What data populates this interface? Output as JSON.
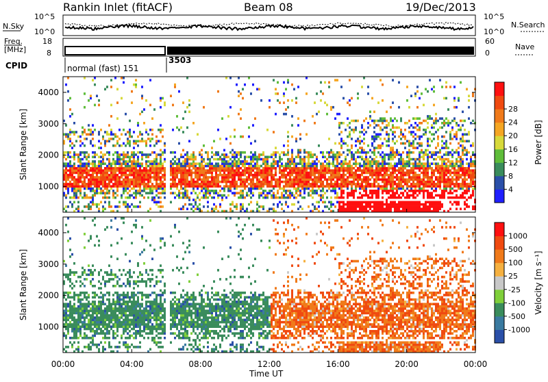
{
  "header": {
    "title": "Rankin Inlet (fitACF)",
    "beam": "Beam 08",
    "date": "19/Dec/2013"
  },
  "noise_panel": {
    "left_label": "N.Sky",
    "right_label": "N.Search",
    "left_ticks": [
      "10^5",
      "10^0"
    ],
    "right_ticks": [
      "10^5",
      "10^0"
    ]
  },
  "freq_panel": {
    "left_label_top": "Freq.",
    "left_label_bottom": "[MHz]",
    "right_label": "Nave",
    "left_ticks": [
      "18",
      "8"
    ],
    "right_ticks": [
      "60",
      "0"
    ]
  },
  "cpid_panel": {
    "label": "CPID",
    "modes": [
      {
        "name": "normal (fast) 151",
        "start_hour": 0,
        "end_hour": 6
      },
      {
        "name": "3503",
        "start_hour": 6,
        "end_hour": 24
      }
    ]
  },
  "chart_data": [
    {
      "type": "heatmap",
      "name": "power",
      "ylabel": "Slant Range [km]",
      "xlabel": "",
      "x_range_hours": [
        0,
        24
      ],
      "ylim": [
        180,
        4500
      ],
      "y_ticks": [
        "1000",
        "2000",
        "3000",
        "4000"
      ],
      "colorbar_label": "Power [dB]",
      "colorbar_ticks": [
        "4",
        "8",
        "12",
        "16",
        "20",
        "24",
        "28"
      ],
      "colorbar_colors": [
        "#1f1fff",
        "#2a4fa8",
        "#3a8c5c",
        "#5fbd3a",
        "#d7d93a",
        "#f5a623",
        "#f07a1a",
        "#f04a10",
        "#ff1010"
      ]
    },
    {
      "type": "heatmap",
      "name": "velocity",
      "ylabel": "Slant Range [km]",
      "xlabel": "Time UT",
      "x_range_hours": [
        0,
        24
      ],
      "x_ticks": [
        "00:00",
        "04:00",
        "08:00",
        "12:00",
        "16:00",
        "20:00",
        "00:00"
      ],
      "ylim": [
        180,
        4500
      ],
      "y_ticks": [
        "1000",
        "2000",
        "3000",
        "4000"
      ],
      "colorbar_label": "Velocity [m s⁻¹]",
      "colorbar_ticks": [
        "1000",
        "500",
        "100",
        "25",
        "-25",
        "-100",
        "-500",
        "-1000"
      ],
      "colorbar_colors": [
        "#2a4fa8",
        "#3a7aa0",
        "#3a8c5c",
        "#7fcf3a",
        "#c8c8c8",
        "#f5b040",
        "#f07a1a",
        "#f04a10",
        "#ff1010"
      ]
    }
  ]
}
